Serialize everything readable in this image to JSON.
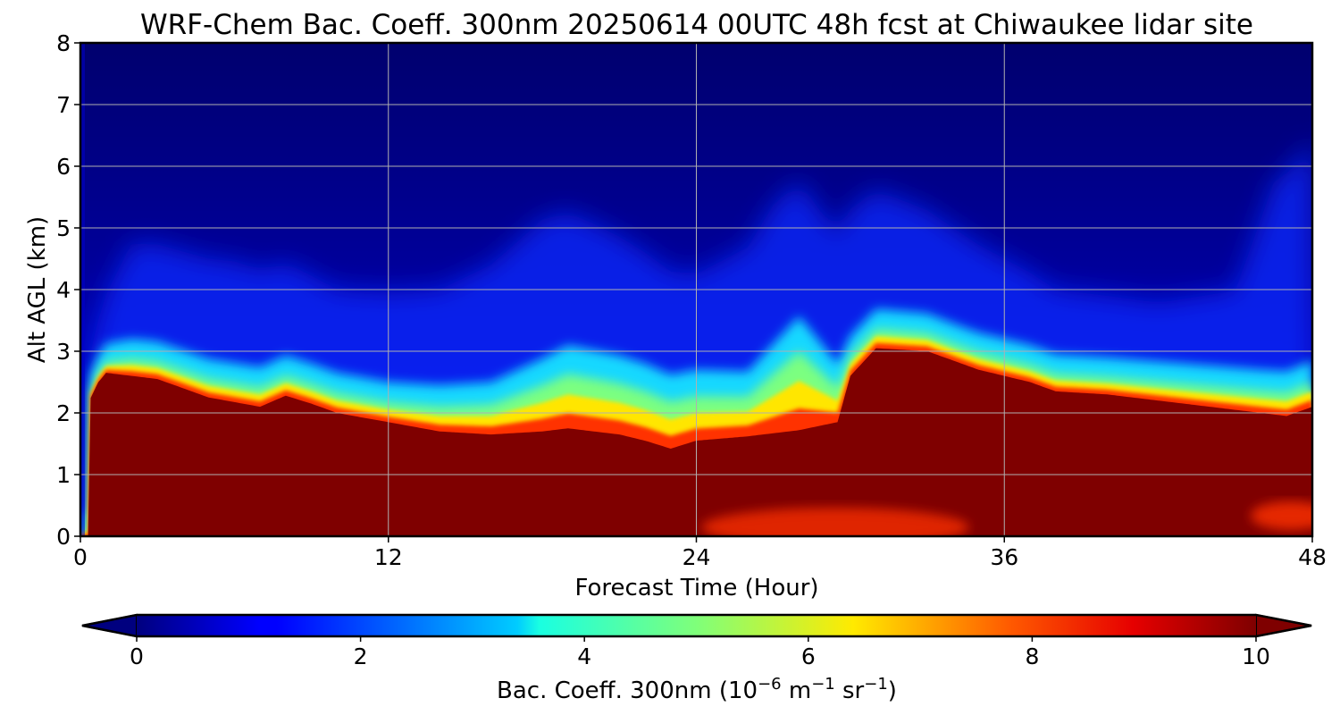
{
  "chart_data": {
    "type": "heatmap",
    "title": "WRF-Chem Bac. Coeff. 300nm  20250614 00UTC 48h fcst at Chiwaukee lidar site",
    "xlabel": "Forecast Time (Hour)",
    "ylabel": "Alt AGL (km)",
    "xlim": [
      0,
      48
    ],
    "ylim": [
      0,
      8
    ],
    "xticks": [
      "0",
      "12",
      "24",
      "36",
      "48"
    ],
    "yticks": [
      "0",
      "1",
      "2",
      "3",
      "4",
      "5",
      "6",
      "7",
      "8"
    ],
    "grid": true,
    "colormap": "jet",
    "colorbar": {
      "label_prefix": "Bac. Coeff. 300nm  (10",
      "label_exp1": "−6",
      "label_mid": " m",
      "label_exp2": "−1",
      "label_mid2": " sr",
      "label_exp3": "−1",
      "label_suffix": ")",
      "range": [
        0,
        10
      ],
      "ticks": [
        "0",
        "2",
        "4",
        "6",
        "8",
        "10"
      ],
      "extend": "both",
      "placement": "bottom"
    },
    "saturated_top_km": [
      [
        0,
        0
      ],
      [
        0.3,
        0
      ],
      [
        0.35,
        2.2
      ],
      [
        0.7,
        2.5
      ],
      [
        1,
        2.65
      ],
      [
        3,
        2.55
      ],
      [
        4,
        2.4
      ],
      [
        5,
        2.25
      ],
      [
        7,
        2.1
      ],
      [
        8,
        2.28
      ],
      [
        9,
        2.15
      ],
      [
        10,
        2.0
      ],
      [
        12,
        1.85
      ],
      [
        14,
        1.7
      ],
      [
        16,
        1.65
      ],
      [
        18,
        1.7
      ],
      [
        19,
        1.75
      ],
      [
        21,
        1.65
      ],
      [
        22,
        1.55
      ],
      [
        23,
        1.42
      ],
      [
        24,
        1.55
      ],
      [
        26,
        1.62
      ],
      [
        28,
        1.72
      ],
      [
        29.5,
        1.85
      ],
      [
        30,
        2.6
      ],
      [
        31,
        3.05
      ],
      [
        33,
        3.0
      ],
      [
        35,
        2.7
      ],
      [
        36,
        2.6
      ],
      [
        37,
        2.5
      ],
      [
        38,
        2.35
      ],
      [
        40,
        2.3
      ],
      [
        42,
        2.2
      ],
      [
        44,
        2.1
      ],
      [
        46,
        2.0
      ],
      [
        47,
        1.95
      ],
      [
        48,
        2.1
      ]
    ],
    "upper_plume": [
      [
        0,
        0
      ],
      [
        2,
        1.5
      ],
      [
        6,
        1.6
      ],
      [
        10,
        1.3
      ],
      [
        14,
        1.5
      ],
      [
        18,
        2.2
      ],
      [
        20,
        2.0
      ],
      [
        24,
        1.5
      ],
      [
        27,
        2.2
      ],
      [
        30,
        2.0
      ],
      [
        34,
        1.5
      ],
      [
        38,
        1.0
      ],
      [
        42,
        0.9
      ],
      [
        45,
        1.2
      ],
      [
        46.5,
        3.0
      ],
      [
        48,
        3.5
      ]
    ],
    "layer_thickness_km": [
      [
        0,
        0.1
      ],
      [
        2,
        0.35
      ],
      [
        8,
        0.4
      ],
      [
        12,
        0.4
      ],
      [
        16,
        0.6
      ],
      [
        19,
        1.1
      ],
      [
        22,
        1.0
      ],
      [
        24,
        0.9
      ],
      [
        26,
        0.8
      ],
      [
        28,
        1.6
      ],
      [
        30,
        0.4
      ],
      [
        34,
        0.35
      ],
      [
        40,
        0.35
      ],
      [
        46,
        0.45
      ],
      [
        48,
        0.5
      ]
    ]
  }
}
